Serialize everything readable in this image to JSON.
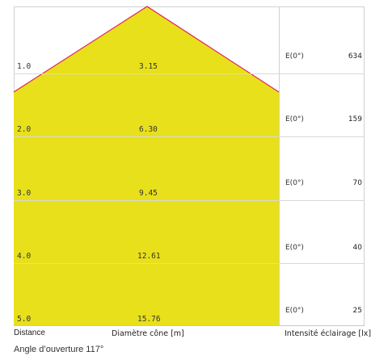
{
  "diagram": {
    "labels": {
      "distance": "Distance",
      "diameter": "Diamètre cône [m]",
      "illuminance": "Intensité éclairage [lx]",
      "beam_angle": "Angle d’ouverture 117°"
    },
    "rows": [
      {
        "distance": "1.0",
        "diameter": "3.15",
        "e_label": "E(0°)",
        "lux": "634"
      },
      {
        "distance": "2.0",
        "diameter": "6.30",
        "e_label": "E(0°)",
        "lux": "159"
      },
      {
        "distance": "3.0",
        "diameter": "9.45",
        "e_label": "E(0°)",
        "lux": "70"
      },
      {
        "distance": "4.0",
        "diameter": "12.61",
        "e_label": "E(0°)",
        "lux": "40"
      },
      {
        "distance": "5.0",
        "diameter": "15.76",
        "e_label": "E(0°)",
        "lux": "25"
      }
    ],
    "colors": {
      "cone_fill": "#e8e01a",
      "cone_edge": "#e0245a",
      "grid": "#d9d9d9"
    }
  }
}
